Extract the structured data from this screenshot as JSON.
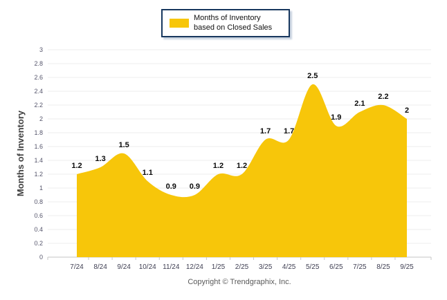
{
  "legend": {
    "label": "Months of Inventory based on Closed Sales"
  },
  "footer": {
    "copyright": "Copyright © Trendgraphix, Inc."
  },
  "colors": {
    "series_fill": "#F7C60A",
    "legend_border": "#17375E",
    "gridline": "#ECECEC",
    "axis_line": "#C6C6C6",
    "y_tick_text": "#55556B",
    "x_tick_text": "#3E3E52",
    "data_label_text": "#0A0A0A",
    "copyright_text": "#595959"
  },
  "chart_data": {
    "type": "area",
    "title": "",
    "categories": [
      "7/24",
      "8/24",
      "9/24",
      "10/24",
      "11/24",
      "12/24",
      "1/25",
      "2/25",
      "3/25",
      "4/25",
      "5/25",
      "6/25",
      "7/25",
      "8/25",
      "9/25"
    ],
    "values": [
      1.2,
      1.3,
      1.5,
      1.1,
      0.9,
      0.9,
      1.2,
      1.2,
      1.7,
      1.7,
      2.5,
      1.9,
      2.1,
      2.2,
      2
    ],
    "series_name": "Months of Inventory based on Closed Sales",
    "xlabel": "",
    "ylabel": "Months of Inventory",
    "ylim": [
      0,
      3
    ],
    "ytick_step": 0.2,
    "fill_color": "#F7C60A",
    "grid": true,
    "smooth": true,
    "data_labels": true,
    "legend_position": "top"
  }
}
